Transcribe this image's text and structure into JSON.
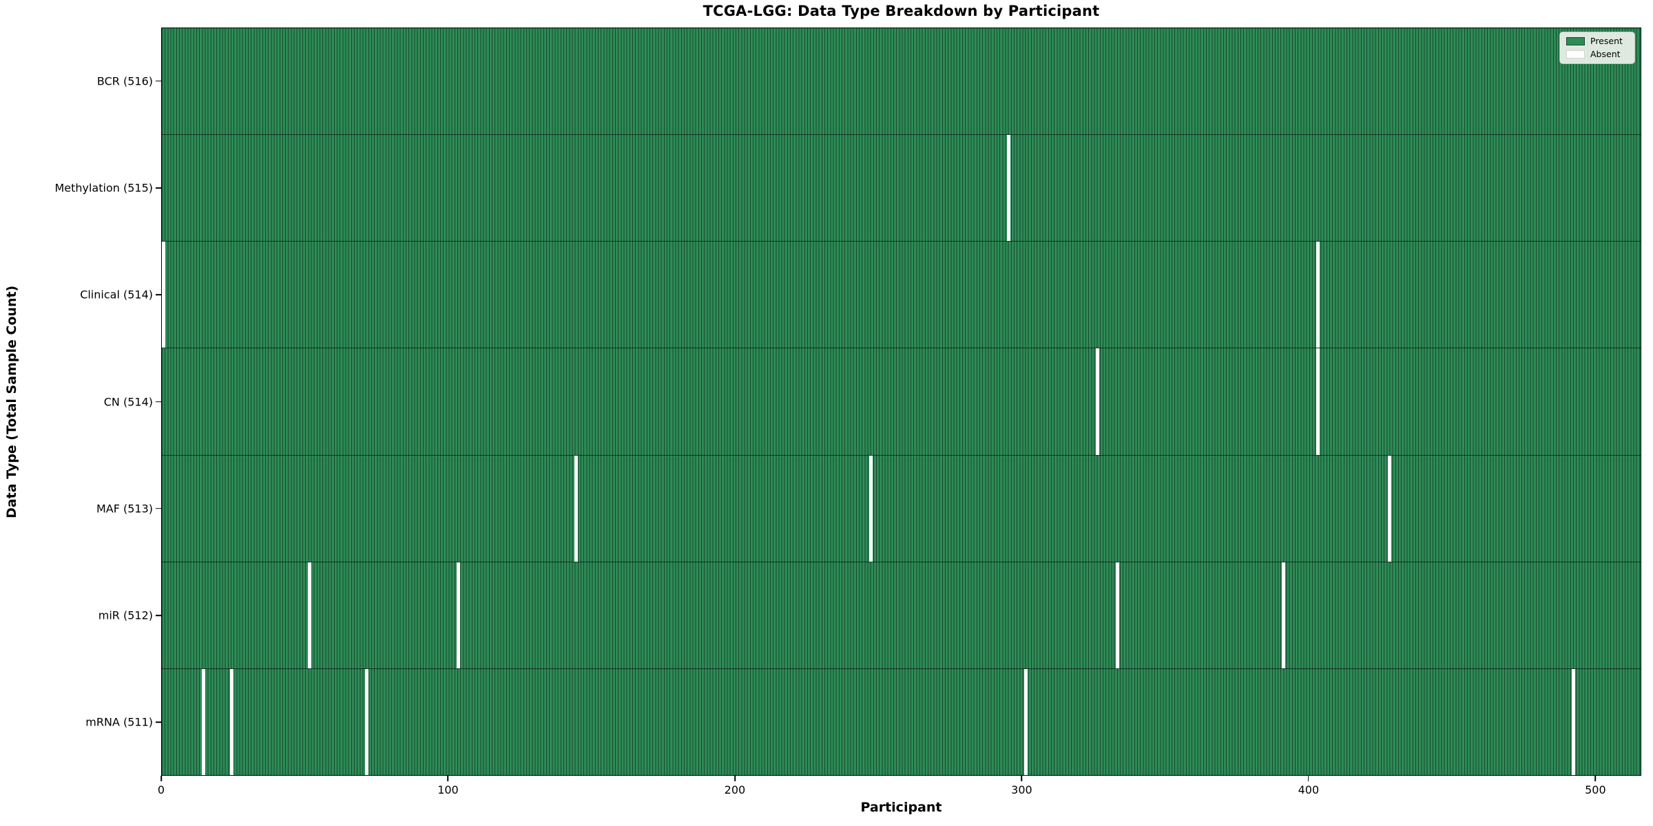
{
  "chart_data": {
    "type": "heatmap",
    "title": "TCGA-LGG: Data Type Breakdown by Participant",
    "xlabel": "Participant",
    "ylabel": "Data Type (Total Sample Count)",
    "n_participants": 516,
    "x_ticks": [
      0,
      100,
      200,
      300,
      400,
      500
    ],
    "xlim": [
      0,
      516
    ],
    "grid": false,
    "legend_position": "upper right",
    "legend": [
      {
        "label": "Present",
        "color": "#2e8b57"
      },
      {
        "label": "Absent",
        "color": "#ffffff"
      }
    ],
    "colors": {
      "present_fill": "#2e8b57",
      "bar_edge": "#17492e",
      "absent_fill": "#ffffff",
      "row_separator": "#000000"
    },
    "rows": [
      {
        "label": "BCR (516)",
        "data_type": "BCR",
        "total": 516,
        "absent_participants": []
      },
      {
        "label": "Methylation (515)",
        "data_type": "Methylation",
        "total": 515,
        "absent_participants": [
          295
        ]
      },
      {
        "label": "Clinical (514)",
        "data_type": "Clinical",
        "total": 514,
        "absent_participants": [
          0,
          403
        ]
      },
      {
        "label": "CN (514)",
        "data_type": "CN",
        "total": 514,
        "absent_participants": [
          326,
          403
        ]
      },
      {
        "label": "MAF (513)",
        "data_type": "MAF",
        "total": 513,
        "absent_participants": [
          144,
          247,
          428
        ]
      },
      {
        "label": "miR (512)",
        "data_type": "miR",
        "total": 512,
        "absent_participants": [
          51,
          103,
          333,
          391
        ]
      },
      {
        "label": "mRNA (511)",
        "data_type": "mRNA",
        "total": 511,
        "absent_participants": [
          14,
          24,
          71,
          301,
          492
        ]
      }
    ]
  }
}
